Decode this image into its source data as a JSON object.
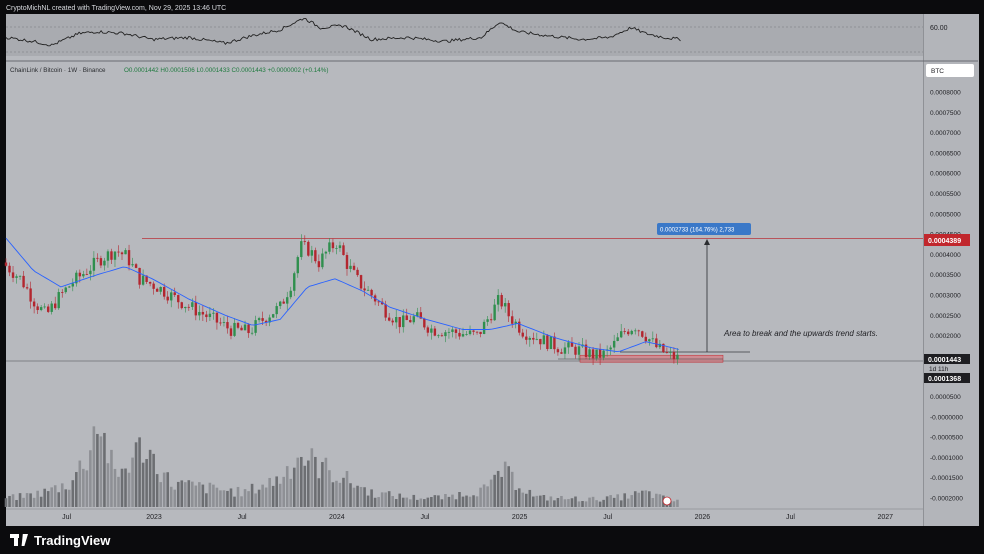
{
  "header": {
    "credit": "CryptoMichNL created with TradingView.com, Nov 29, 2025 13:46 UTC"
  },
  "legend": {
    "symbol": "ChainLink / Bitcoin · 1W · Binance",
    "ohlc": "O0.0001442 H0.0001506 L0.0001433 C0.0001443 +0.0000002 (+0.14%)"
  },
  "rsi_panel": {
    "level_label": "60.00"
  },
  "currency_badge": "BTC",
  "price_axis": {
    "ticks": [
      "0.0008000",
      "0.0007500",
      "0.0007000",
      "0.0006500",
      "0.0006000",
      "0.0005500",
      "0.0005000",
      "0.0004500",
      "0.0004000",
      "0.0003500",
      "0.0003000",
      "0.0002500",
      "0.0002000",
      "0.0001500",
      "0.0001000",
      "0.0000500",
      "-0.0000000",
      "-0.0000500",
      "-0.0001000",
      "-0.0001500",
      "-0.0002000"
    ]
  },
  "time_axis": {
    "labels": [
      "Jul",
      "2023",
      "Jul",
      "2024",
      "Jul",
      "2025",
      "Jul",
      "2026",
      "Jul",
      "2027"
    ]
  },
  "price_tags": {
    "resistance": "0.0004389",
    "current": "0.0001443",
    "countdown": "1d 11h",
    "low": "0.0001368"
  },
  "measure_label": "0.0002733 (164.76%) 2,733",
  "annotation": "Area to break and the upwards trend starts.",
  "brand": "TradingView",
  "colors": {
    "up": "#2f8f4e",
    "down": "#b3262f",
    "ma": "#2962ff",
    "measure": "#2962ff",
    "resistance_tag": "#c1272d",
    "zone": "#e06870"
  },
  "chart_data": {
    "type": "candlestick",
    "title": "ChainLink / Bitcoin · 1W · Binance",
    "xlabel": "",
    "ylabel": "",
    "ylim": [
      -0.0002,
      0.0008
    ],
    "x_axis": [
      "Jul",
      "2023",
      "Jul",
      "2024",
      "Jul",
      "2025",
      "Jul",
      "2026",
      "Jul",
      "2027"
    ],
    "resistance_level": 0.0004389,
    "current_price": 0.0001443,
    "low_price": 0.0001368,
    "price_path": [
      [
        2022.2,
        0.00038
      ],
      [
        2022.3,
        0.00034
      ],
      [
        2022.38,
        0.00028
      ],
      [
        2022.44,
        0.00025
      ],
      [
        2022.5,
        0.00029
      ],
      [
        2022.58,
        0.00033
      ],
      [
        2022.66,
        0.00036
      ],
      [
        2022.74,
        0.00039
      ],
      [
        2022.82,
        0.00041
      ],
      [
        2022.88,
        0.000395
      ],
      [
        2022.95,
        0.00034
      ],
      [
        2023.05,
        0.00032
      ],
      [
        2023.15,
        0.00029
      ],
      [
        2023.25,
        0.000265
      ],
      [
        2023.35,
        0.00024
      ],
      [
        2023.45,
        0.000215
      ],
      [
        2023.55,
        0.00021
      ],
      [
        2023.65,
        0.00025
      ],
      [
        2023.72,
        0.00027
      ],
      [
        2023.78,
        0.00033
      ],
      [
        2023.83,
        0.00042
      ],
      [
        2023.88,
        0.00041
      ],
      [
        2023.93,
        0.00038
      ],
      [
        2023.98,
        0.00041
      ],
      [
        2024.03,
        0.00043
      ],
      [
        2024.08,
        0.00038
      ],
      [
        2024.15,
        0.00033
      ],
      [
        2024.22,
        0.0003
      ],
      [
        2024.3,
        0.00026
      ],
      [
        2024.38,
        0.00023
      ],
      [
        2024.46,
        0.000245
      ],
      [
        2024.55,
        0.000215
      ],
      [
        2024.65,
        0.00021
      ],
      [
        2024.72,
        0.000205
      ],
      [
        2024.8,
        0.0002
      ],
      [
        2024.88,
        0.00026
      ],
      [
        2024.92,
        0.00029
      ],
      [
        2024.97,
        0.00025
      ],
      [
        2025.05,
        0.00021
      ],
      [
        2025.15,
        0.00019
      ],
      [
        2025.25,
        0.00017
      ],
      [
        2025.35,
        0.000165
      ],
      [
        2025.45,
        0.00015
      ],
      [
        2025.5,
        0.000155
      ],
      [
        2025.55,
        0.00018
      ],
      [
        2025.6,
        0.00021
      ],
      [
        2025.66,
        0.000225
      ],
      [
        2025.72,
        0.0002
      ],
      [
        2025.78,
        0.00017
      ],
      [
        2025.85,
        0.00015
      ],
      [
        2025.89,
        0.000144
      ]
    ],
    "ma_path": [
      [
        2022.2,
        0.00044
      ],
      [
        2022.35,
        0.00036
      ],
      [
        2022.5,
        0.00032
      ],
      [
        2022.7,
        0.00035
      ],
      [
        2022.85,
        0.00037
      ],
      [
        2023.0,
        0.00034
      ],
      [
        2023.2,
        0.00029
      ],
      [
        2023.4,
        0.00025
      ],
      [
        2023.55,
        0.000225
      ],
      [
        2023.7,
        0.00024
      ],
      [
        2023.85,
        0.00032
      ],
      [
        2024.0,
        0.00034
      ],
      [
        2024.15,
        0.00031
      ],
      [
        2024.3,
        0.00027
      ],
      [
        2024.5,
        0.00024
      ],
      [
        2024.7,
        0.000215
      ],
      [
        2024.85,
        0.000215
      ],
      [
        2025.0,
        0.00023
      ],
      [
        2025.2,
        0.000195
      ],
      [
        2025.4,
        0.00017
      ],
      [
        2025.55,
        0.00016
      ],
      [
        2025.7,
        0.000185
      ],
      [
        2025.8,
        0.000175
      ],
      [
        2025.89,
        0.000165
      ]
    ],
    "volume_relative": [
      [
        2022.25,
        0.1
      ],
      [
        2022.4,
        0.15
      ],
      [
        2022.55,
        0.25
      ],
      [
        2022.65,
        0.55
      ],
      [
        2022.7,
        0.95
      ],
      [
        2022.8,
        0.3
      ],
      [
        2022.95,
        0.65
      ],
      [
        2023.1,
        0.25
      ],
      [
        2023.3,
        0.2
      ],
      [
        2023.5,
        0.15
      ],
      [
        2023.7,
        0.3
      ],
      [
        2023.8,
        0.55
      ],
      [
        2024.0,
        0.35
      ],
      [
        2024.2,
        0.15
      ],
      [
        2024.4,
        0.1
      ],
      [
        2024.6,
        0.1
      ],
      [
        2024.85,
        0.2
      ],
      [
        2024.9,
        0.4
      ],
      [
        2025.1,
        0.1
      ],
      [
        2025.4,
        0.08
      ],
      [
        2025.55,
        0.1
      ],
      [
        2025.7,
        0.15
      ],
      [
        2025.85,
        0.06
      ]
    ],
    "rsi_path": [
      [
        2022.2,
        0.45
      ],
      [
        2022.35,
        0.35
      ],
      [
        2022.45,
        0.25
      ],
      [
        2022.6,
        0.55
      ],
      [
        2022.7,
        0.6
      ],
      [
        2022.85,
        0.55
      ],
      [
        2023.0,
        0.4
      ],
      [
        2023.2,
        0.45
      ],
      [
        2023.4,
        0.3
      ],
      [
        2023.55,
        0.5
      ],
      [
        2023.7,
        0.65
      ],
      [
        2023.83,
        0.95
      ],
      [
        2023.92,
        0.7
      ],
      [
        2024.05,
        0.75
      ],
      [
        2024.2,
        0.4
      ],
      [
        2024.4,
        0.45
      ],
      [
        2024.6,
        0.35
      ],
      [
        2024.8,
        0.45
      ],
      [
        2024.9,
        0.85
      ],
      [
        2025.0,
        0.6
      ],
      [
        2025.15,
        0.5
      ],
      [
        2025.35,
        0.4
      ],
      [
        2025.5,
        0.45
      ],
      [
        2025.62,
        0.7
      ],
      [
        2025.7,
        0.55
      ],
      [
        2025.8,
        0.45
      ],
      [
        2025.89,
        0.4
      ]
    ]
  }
}
